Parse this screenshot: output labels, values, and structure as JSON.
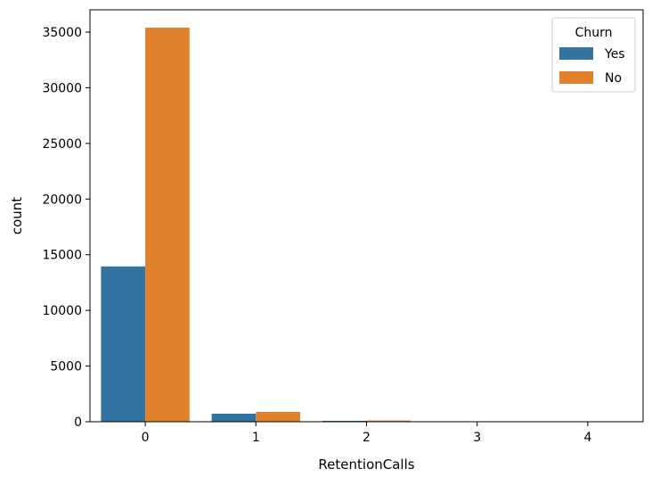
{
  "chart_data": {
    "type": "bar",
    "xlabel": "RetentionCalls",
    "ylabel": "count",
    "categories": [
      "0",
      "1",
      "2",
      "3",
      "4"
    ],
    "series": [
      {
        "name": "Yes",
        "color": "#3274a1",
        "values": [
          13950,
          720,
          80,
          12,
          2
        ]
      },
      {
        "name": "No",
        "color": "#e1812c",
        "values": [
          35400,
          880,
          110,
          20,
          4
        ]
      }
    ],
    "ylim": [
      0,
      37000
    ],
    "yticks": [
      0,
      5000,
      10000,
      15000,
      20000,
      25000,
      30000,
      35000
    ],
    "legend": {
      "title": "Churn",
      "placement": "top-right"
    },
    "grid": false
  }
}
